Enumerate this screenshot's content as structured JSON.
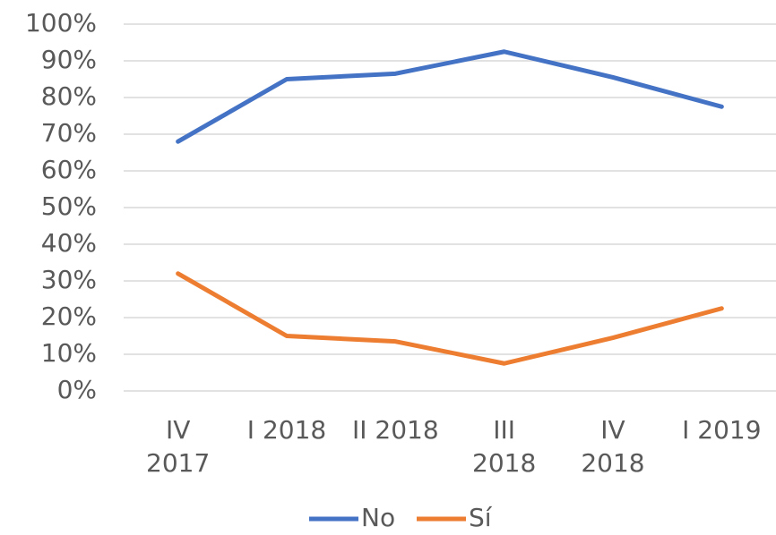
{
  "chart_data": {
    "type": "line",
    "categories": [
      "IV 2017",
      "I 2018",
      "II 2018",
      "III 2018",
      "IV 2018",
      "I 2019"
    ],
    "series": [
      {
        "name": "No",
        "color": "#4472c4",
        "values": [
          68,
          85,
          86.5,
          92.5,
          85.5,
          77.5
        ]
      },
      {
        "name": "Sí",
        "color": "#ed7d31",
        "values": [
          32,
          15,
          13.5,
          7.5,
          14.5,
          22.5
        ]
      }
    ],
    "ylim": [
      0,
      100
    ],
    "yticks": [
      {
        "value": 0,
        "label": "0%"
      },
      {
        "value": 10,
        "label": "10%"
      },
      {
        "value": 20,
        "label": "20%"
      },
      {
        "value": 30,
        "label": "30%"
      },
      {
        "value": 40,
        "label": "40%"
      },
      {
        "value": 50,
        "label": "50%"
      },
      {
        "value": 60,
        "label": "60%"
      },
      {
        "value": 70,
        "label": "70%"
      },
      {
        "value": 80,
        "label": "80%"
      },
      {
        "value": 90,
        "label": "90%"
      },
      {
        "value": 100,
        "label": "100%"
      }
    ],
    "grid": true,
    "legend": "bottom"
  }
}
